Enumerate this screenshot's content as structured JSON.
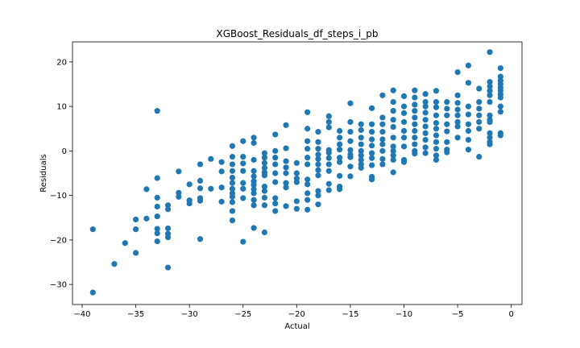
{
  "chart_data": {
    "type": "scatter",
    "title": "XGBoost_Residuals_df_steps_i_pb",
    "xlabel": "Actual",
    "ylabel": "Residuals",
    "xlim": [
      -40.9,
      1.0
    ],
    "ylim": [
      -34.5,
      24.5
    ],
    "xticks": [
      -40,
      -35,
      -30,
      -25,
      -20,
      -15,
      -10,
      -5,
      0
    ],
    "yticks": [
      -30,
      -20,
      -10,
      0,
      10,
      20
    ],
    "grid": false,
    "legend": "none",
    "color": "#1f77b4",
    "series": [
      {
        "points": [
          [
            -39,
            -17.6
          ],
          [
            -39,
            -31.8
          ],
          [
            -37,
            -25.4
          ],
          [
            -36,
            -20.7
          ],
          [
            -35,
            -22.9
          ],
          [
            -35,
            -17.6
          ],
          [
            -35,
            -15.4
          ],
          [
            -34,
            -8.6
          ],
          [
            -34,
            -15.2
          ],
          [
            -33,
            9.0
          ],
          [
            -33,
            -6.1
          ],
          [
            -33,
            -10.5
          ],
          [
            -33,
            -12.5
          ],
          [
            -33,
            -14.7
          ],
          [
            -33,
            -17.5
          ],
          [
            -33,
            -18.5
          ],
          [
            -33,
            -20.3
          ],
          [
            -32,
            -12.2
          ],
          [
            -32,
            -13.1
          ],
          [
            -32,
            -17.4
          ],
          [
            -32,
            -18.6
          ],
          [
            -32,
            -19.4
          ],
          [
            -32,
            -26.2
          ],
          [
            -31,
            -4.6
          ],
          [
            -31,
            -9.4
          ],
          [
            -31,
            -10.3
          ],
          [
            -30,
            -7.5
          ],
          [
            -30,
            -11.1
          ],
          [
            -30,
            -11.8
          ],
          [
            -29,
            -3.0
          ],
          [
            -29,
            -6.7
          ],
          [
            -29,
            -8.4
          ],
          [
            -29,
            -10.6
          ],
          [
            -29,
            -11.2
          ],
          [
            -29,
            -19.8
          ],
          [
            -28,
            -1.8
          ],
          [
            -28,
            -8.5
          ],
          [
            -27,
            -2.5
          ],
          [
            -27,
            -4.6
          ],
          [
            -27,
            -8.2
          ],
          [
            -27,
            -11.4
          ],
          [
            -26,
            1.1
          ],
          [
            -26,
            -1.3
          ],
          [
            -26,
            -3.0
          ],
          [
            -26,
            -4.5
          ],
          [
            -26,
            -6.0
          ],
          [
            -26,
            -7.2
          ],
          [
            -26,
            -8.5
          ],
          [
            -26,
            -9.5
          ],
          [
            -26,
            -10.3
          ],
          [
            -26,
            -11.5
          ],
          [
            -26,
            -13.5
          ],
          [
            -26,
            -15.6
          ],
          [
            -25,
            2.2
          ],
          [
            -25,
            -1.3
          ],
          [
            -25,
            -2.8
          ],
          [
            -25,
            -4.5
          ],
          [
            -25,
            -7.2
          ],
          [
            -25,
            -8.5
          ],
          [
            -25,
            -10.6
          ],
          [
            -25,
            -20.4
          ],
          [
            -24,
            3.0
          ],
          [
            -24,
            1.8
          ],
          [
            -24,
            -2.0
          ],
          [
            -24,
            -4.5
          ],
          [
            -24,
            -5.7
          ],
          [
            -24,
            -6.8
          ],
          [
            -24,
            -7.6
          ],
          [
            -24,
            -8.6
          ],
          [
            -24,
            -9.5
          ],
          [
            -24,
            -11.0
          ],
          [
            -24,
            -12.2
          ],
          [
            -24,
            -17.3
          ],
          [
            -23,
            -0.5
          ],
          [
            -23,
            -1.5
          ],
          [
            -23,
            -2.7
          ],
          [
            -23,
            -3.8
          ],
          [
            -23,
            -4.8
          ],
          [
            -23,
            -5.5
          ],
          [
            -23,
            -8.0
          ],
          [
            -23,
            -9.0
          ],
          [
            -23,
            -10.5
          ],
          [
            -23,
            -12.2
          ],
          [
            -23,
            -18.3
          ],
          [
            -22,
            3.7
          ],
          [
            -22,
            0.0
          ],
          [
            -22,
            -1.5
          ],
          [
            -22,
            -3.0
          ],
          [
            -22,
            -5.0
          ],
          [
            -22,
            -7.0
          ],
          [
            -22,
            -10.6
          ],
          [
            -22,
            -11.8
          ],
          [
            -22,
            -13.5
          ],
          [
            -21,
            5.8
          ],
          [
            -21,
            0.6
          ],
          [
            -21,
            -2.3
          ],
          [
            -21,
            -3.7
          ],
          [
            -21,
            -5.0
          ],
          [
            -21,
            -7.2
          ],
          [
            -21,
            -8.2
          ],
          [
            -21,
            -12.4
          ],
          [
            -20,
            -2.7
          ],
          [
            -20,
            -5.0
          ],
          [
            -20,
            -6.2
          ],
          [
            -20,
            -7.0
          ],
          [
            -20,
            -11.3
          ],
          [
            -20,
            -13.0
          ],
          [
            -19,
            8.7
          ],
          [
            -19,
            5.0
          ],
          [
            -19,
            2.2
          ],
          [
            -19,
            0.5
          ],
          [
            -19,
            -1.5
          ],
          [
            -19,
            -3.0
          ],
          [
            -19,
            -6.4
          ],
          [
            -19,
            -7.5
          ],
          [
            -19,
            -9.5
          ],
          [
            -19,
            -11.0
          ],
          [
            -19,
            -13.2
          ],
          [
            -18,
            4.3
          ],
          [
            -18,
            2.0
          ],
          [
            -18,
            0.5
          ],
          [
            -18,
            -0.8
          ],
          [
            -18,
            -1.8
          ],
          [
            -18,
            -3.0
          ],
          [
            -18,
            -4.3
          ],
          [
            -18,
            -5.5
          ],
          [
            -18,
            -9.0
          ],
          [
            -18,
            -10.0
          ],
          [
            -18,
            -12.0
          ],
          [
            -17,
            7.8
          ],
          [
            -17,
            6.5
          ],
          [
            -17,
            5.3
          ],
          [
            -17,
            0.2
          ],
          [
            -17,
            -0.4
          ],
          [
            -17,
            -1.6
          ],
          [
            -17,
            -3.0
          ],
          [
            -17,
            -4.5
          ],
          [
            -17,
            -7.4
          ],
          [
            -17,
            -8.8
          ],
          [
            -16,
            4.5
          ],
          [
            -16,
            3.0
          ],
          [
            -16,
            1.5
          ],
          [
            -16,
            0.3
          ],
          [
            -16,
            -1.5
          ],
          [
            -16,
            -2.5
          ],
          [
            -16,
            -5.6
          ],
          [
            -16,
            -8.0
          ],
          [
            -16,
            -8.6
          ],
          [
            -15,
            10.7
          ],
          [
            -15,
            6.5
          ],
          [
            -15,
            4.3
          ],
          [
            -15,
            2.2
          ],
          [
            -15,
            0.2
          ],
          [
            -15,
            -0.8
          ],
          [
            -15,
            -1.4
          ],
          [
            -15,
            -3.5
          ],
          [
            -15,
            -5.7
          ],
          [
            -14,
            6.0
          ],
          [
            -14,
            4.7
          ],
          [
            -14,
            3.0
          ],
          [
            -14,
            1.5
          ],
          [
            -14,
            0.0
          ],
          [
            -14,
            -1.0
          ],
          [
            -14,
            -2.0
          ],
          [
            -14,
            -3.0
          ],
          [
            -14,
            -3.8
          ],
          [
            -13,
            9.6
          ],
          [
            -13,
            6.0
          ],
          [
            -13,
            4.3
          ],
          [
            -13,
            2.6
          ],
          [
            -13,
            1.2
          ],
          [
            -13,
            -0.5
          ],
          [
            -13,
            -1.6
          ],
          [
            -13,
            -3.2
          ],
          [
            -13,
            -5.8
          ],
          [
            -13,
            -6.4
          ],
          [
            -12,
            12.5
          ],
          [
            -12,
            7.5
          ],
          [
            -12,
            6.0
          ],
          [
            -12,
            4.3
          ],
          [
            -12,
            2.6
          ],
          [
            -12,
            1.5
          ],
          [
            -12,
            0.0
          ],
          [
            -12,
            -1.8
          ],
          [
            -12,
            -3.0
          ],
          [
            -11,
            13.6
          ],
          [
            -11,
            11.0
          ],
          [
            -11,
            9.0
          ],
          [
            -11,
            7.0
          ],
          [
            -11,
            5.4
          ],
          [
            -11,
            3.0
          ],
          [
            -11,
            1.0
          ],
          [
            -11,
            0.0
          ],
          [
            -11,
            -1.0
          ],
          [
            -11,
            -2.0
          ],
          [
            -11,
            -4.8
          ],
          [
            -10,
            12.3
          ],
          [
            -10,
            10.0
          ],
          [
            -10,
            8.5
          ],
          [
            -10,
            6.5
          ],
          [
            -10,
            4.5
          ],
          [
            -10,
            3.0
          ],
          [
            -10,
            1.0
          ],
          [
            -10,
            -2.0
          ],
          [
            -10,
            -2.5
          ],
          [
            -9,
            13.6
          ],
          [
            -9,
            12.0
          ],
          [
            -9,
            10.4
          ],
          [
            -9,
            9.0
          ],
          [
            -9,
            7.5
          ],
          [
            -9,
            6.0
          ],
          [
            -9,
            4.5
          ],
          [
            -9,
            3.0
          ],
          [
            -9,
            1.5
          ],
          [
            -9,
            0.0
          ],
          [
            -9,
            -0.6
          ],
          [
            -8,
            12.8
          ],
          [
            -8,
            11.0
          ],
          [
            -8,
            10.0
          ],
          [
            -8,
            8.6
          ],
          [
            -8,
            7.0
          ],
          [
            -8,
            5.5
          ],
          [
            -8,
            4.0
          ],
          [
            -8,
            2.5
          ],
          [
            -8,
            0.8
          ],
          [
            -8,
            -0.5
          ],
          [
            -7,
            13.5
          ],
          [
            -7,
            11.0
          ],
          [
            -7,
            9.8
          ],
          [
            -7,
            8.0
          ],
          [
            -7,
            6.3
          ],
          [
            -7,
            5.0
          ],
          [
            -7,
            3.5
          ],
          [
            -7,
            2.0
          ],
          [
            -7,
            0.5
          ],
          [
            -7,
            -1.0
          ],
          [
            -7,
            -2.0
          ],
          [
            -6,
            11.0
          ],
          [
            -6,
            9.5
          ],
          [
            -6,
            8.0
          ],
          [
            -6,
            6.0
          ],
          [
            -6,
            4.4
          ],
          [
            -6,
            2.0
          ],
          [
            -6,
            0.3
          ],
          [
            -6,
            -0.3
          ],
          [
            -5,
            17.7
          ],
          [
            -5,
            12.5
          ],
          [
            -5,
            10.8
          ],
          [
            -5,
            9.3
          ],
          [
            -5,
            8.0
          ],
          [
            -5,
            6.5
          ],
          [
            -5,
            5.5
          ],
          [
            -5,
            3.0
          ],
          [
            -4,
            19.2
          ],
          [
            -4,
            15.3
          ],
          [
            -4,
            10.0
          ],
          [
            -4,
            8.2
          ],
          [
            -4,
            6.0
          ],
          [
            -4,
            4.5
          ],
          [
            -4,
            2.5
          ],
          [
            -4,
            0.3
          ],
          [
            -3,
            14.0
          ],
          [
            -3,
            11.0
          ],
          [
            -3,
            9.5
          ],
          [
            -3,
            8.0
          ],
          [
            -3,
            6.5
          ],
          [
            -3,
            5.0
          ],
          [
            -3,
            -1.3
          ],
          [
            -2,
            22.2
          ],
          [
            -2,
            15.5
          ],
          [
            -2,
            14.5
          ],
          [
            -2,
            13.5
          ],
          [
            -2,
            12.5
          ],
          [
            -2,
            11.0
          ],
          [
            -2,
            8.0
          ],
          [
            -2,
            7.0
          ],
          [
            -2,
            6.5
          ],
          [
            -2,
            4.0
          ],
          [
            -2,
            3.0
          ],
          [
            -2,
            2.0
          ],
          [
            -2,
            1.5
          ],
          [
            -1,
            18.6
          ],
          [
            -1,
            16.7
          ],
          [
            -1,
            15.8
          ],
          [
            -1,
            15.0
          ],
          [
            -1,
            14.2
          ],
          [
            -1,
            13.5
          ],
          [
            -1,
            12.7
          ],
          [
            -1,
            12.0
          ],
          [
            -1,
            10.0
          ],
          [
            -1,
            8.8
          ],
          [
            -1,
            4.0
          ],
          [
            -1,
            3.5
          ]
        ]
      }
    ]
  }
}
